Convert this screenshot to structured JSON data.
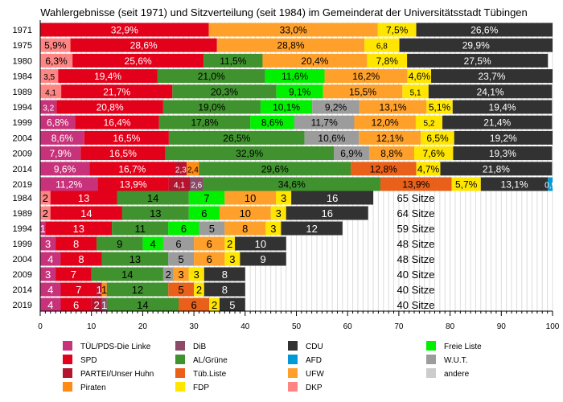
{
  "chart_data": {
    "type": "bar",
    "orientation": "horizontal",
    "stacked": true,
    "title": "Wahlergebnisse (seit 1971) und Sitzverteilung (seit 1984) im Gemeinderat der Universitätsstadt Tübingen",
    "xlim": [
      0,
      100
    ],
    "xticks": [
      "0",
      "10",
      "20",
      "30",
      "40",
      "50",
      "60",
      "70",
      "80",
      "90",
      "100"
    ],
    "grid": true,
    "legend_position": "bottom",
    "parties": [
      {
        "key": "tuel",
        "name": "TÜL/PDS-Die Linke",
        "color": "#c8327a",
        "text": "#fff"
      },
      {
        "key": "spd",
        "name": "SPD",
        "color": "#e2001a",
        "text": "#fff"
      },
      {
        "key": "partei",
        "name": "PARTEI/Unser Huhn",
        "color": "#b3142e",
        "text": "#fff"
      },
      {
        "key": "piraten",
        "name": "Piraten",
        "color": "#ff8a14",
        "text": "#000"
      },
      {
        "key": "dib",
        "name": "DiB",
        "color": "#8a4a68",
        "text": "#fff"
      },
      {
        "key": "al",
        "name": "AL/Grüne",
        "color": "#3f922d",
        "text": "#000"
      },
      {
        "key": "tueb",
        "name": "Tüb.Liste",
        "color": "#e8601a",
        "text": "#000"
      },
      {
        "key": "fdp",
        "name": "FDP",
        "color": "#ffe600",
        "text": "#000"
      },
      {
        "key": "cdu",
        "name": "CDU",
        "color": "#323232",
        "text": "#fff"
      },
      {
        "key": "afd",
        "name": "AFD",
        "color": "#0099d8",
        "text": "#fff"
      },
      {
        "key": "ufw",
        "name": "UFW",
        "color": "#ffa02a",
        "text": "#000"
      },
      {
        "key": "dkp",
        "name": "DKP",
        "color": "#ff8484",
        "text": "#000"
      },
      {
        "key": "fl",
        "name": "Freie Liste",
        "color": "#00f000",
        "text": "#000"
      },
      {
        "key": "wut",
        "name": "W.U.T.",
        "color": "#9c9c9c",
        "text": "#000"
      },
      {
        "key": "andere",
        "name": "andere",
        "color": "#cccccc",
        "text": "#000"
      }
    ],
    "votes": [
      {
        "year": "1971",
        "segments": [
          [
            "spd",
            32.9,
            "32,9%"
          ],
          [
            "ufw",
            33.0,
            "33,0%"
          ],
          [
            "fdp",
            7.5,
            "7,5%"
          ],
          [
            "cdu",
            26.6,
            "26,6%"
          ]
        ]
      },
      {
        "year": "1975",
        "segments": [
          [
            "dkp",
            5.9,
            "5,9%"
          ],
          [
            "spd",
            28.6,
            "28,6%"
          ],
          [
            "ufw",
            28.8,
            "28,8%"
          ],
          [
            "fdp",
            6.8,
            "6,8"
          ],
          [
            "cdu",
            29.9,
            "29,9%"
          ]
        ]
      },
      {
        "year": "1980",
        "segments": [
          [
            "dkp",
            6.3,
            "6,3%"
          ],
          [
            "spd",
            25.6,
            "25,6%"
          ],
          [
            "al",
            11.5,
            "11,5%"
          ],
          [
            "ufw",
            20.4,
            "20,4%"
          ],
          [
            "fdp",
            7.8,
            "7,8%"
          ],
          [
            "cdu",
            27.5,
            "27,5%"
          ]
        ]
      },
      {
        "year": "1984",
        "segments": [
          [
            "dkp",
            3.5,
            "3,5"
          ],
          [
            "spd",
            19.4,
            "19,4%"
          ],
          [
            "al",
            21.0,
            "21,0%"
          ],
          [
            "fl",
            11.6,
            "11,6%"
          ],
          [
            "ufw",
            16.2,
            "16,2%"
          ],
          [
            "fdp",
            4.6,
            "4,6%"
          ],
          [
            "cdu",
            23.7,
            "23,7%"
          ]
        ]
      },
      {
        "year": "1989",
        "segments": [
          [
            "dkp",
            4.1,
            "4,1"
          ],
          [
            "spd",
            21.7,
            "21,7%"
          ],
          [
            "al",
            20.3,
            "20,3%"
          ],
          [
            "fl",
            9.1,
            "9,1%"
          ],
          [
            "ufw",
            15.5,
            "15,5%"
          ],
          [
            "fdp",
            5.1,
            "5,1"
          ],
          [
            "cdu",
            24.1,
            "24,1%"
          ]
        ]
      },
      {
        "year": "1994",
        "segments": [
          [
            "tuel",
            3.2,
            "3,2"
          ],
          [
            "spd",
            20.8,
            "20,8%"
          ],
          [
            "al",
            19.0,
            "19,0%"
          ],
          [
            "fl",
            10.1,
            "10,1%"
          ],
          [
            "wut",
            9.2,
            "9,2%"
          ],
          [
            "ufw",
            13.1,
            "13,1%"
          ],
          [
            "fdp",
            5.1,
            "5,1%"
          ],
          [
            "cdu",
            19.4,
            "19,4%"
          ],
          [
            "andere",
            0.1,
            ""
          ]
        ]
      },
      {
        "year": "1999",
        "segments": [
          [
            "tuel",
            6.8,
            "6,8%"
          ],
          [
            "spd",
            16.4,
            "16,4%"
          ],
          [
            "al",
            17.8,
            "17,8%"
          ],
          [
            "fl",
            8.6,
            "8,6%"
          ],
          [
            "wut",
            11.7,
            "11,7%"
          ],
          [
            "ufw",
            12.0,
            "12,0%"
          ],
          [
            "fdp",
            5.2,
            "5,2"
          ],
          [
            "cdu",
            21.4,
            "21,4%"
          ]
        ]
      },
      {
        "year": "2004",
        "segments": [
          [
            "tuel",
            8.6,
            "8,6%"
          ],
          [
            "spd",
            16.5,
            "16,5%"
          ],
          [
            "al",
            26.5,
            "26,5%"
          ],
          [
            "wut",
            10.6,
            "10,6%"
          ],
          [
            "ufw",
            12.1,
            "12,1%"
          ],
          [
            "fdp",
            6.5,
            "6,5%"
          ],
          [
            "cdu",
            19.2,
            "19,2%"
          ]
        ]
      },
      {
        "year": "2009",
        "segments": [
          [
            "tuel",
            7.9,
            "7,9%"
          ],
          [
            "spd",
            16.5,
            "16,5%"
          ],
          [
            "al",
            32.9,
            "32,9%"
          ],
          [
            "wut",
            6.9,
            "6,9%"
          ],
          [
            "ufw",
            8.8,
            "8,8%"
          ],
          [
            "fdp",
            7.6,
            "7,6%"
          ],
          [
            "cdu",
            19.3,
            "19,3%"
          ]
        ]
      },
      {
        "year": "2014",
        "segments": [
          [
            "tuel",
            9.6,
            "9,6%"
          ],
          [
            "spd",
            16.7,
            "16,7%"
          ],
          [
            "partei",
            2.3,
            "2,3"
          ],
          [
            "piraten",
            2.4,
            "2,4"
          ],
          [
            "al",
            29.6,
            "29,6%"
          ],
          [
            "tueb",
            12.8,
            "12,8%"
          ],
          [
            "fdp",
            4.7,
            "4,7%"
          ],
          [
            "cdu",
            21.8,
            "21,8%"
          ]
        ]
      },
      {
        "year": "2019",
        "segments": [
          [
            "tuel",
            11.2,
            "11,2%"
          ],
          [
            "spd",
            13.9,
            "13,9%"
          ],
          [
            "partei",
            4.1,
            "4,1"
          ],
          [
            "dib",
            2.6,
            "2,6"
          ],
          [
            "al",
            34.6,
            "34,6%"
          ],
          [
            "tueb",
            13.9,
            "13,9%"
          ],
          [
            "fdp",
            5.7,
            "5,7%"
          ],
          [
            "cdu",
            13.1,
            "13,1%"
          ],
          [
            "afd",
            0.9,
            "0,9"
          ]
        ]
      }
    ],
    "seats": [
      {
        "year": "1984",
        "total": "65 Sitze",
        "segments": [
          [
            "dkp",
            2
          ],
          [
            "spd",
            13
          ],
          [
            "al",
            14
          ],
          [
            "fl",
            7
          ],
          [
            "ufw",
            10
          ],
          [
            "fdp",
            3
          ],
          [
            "cdu",
            16
          ]
        ]
      },
      {
        "year": "1989",
        "total": "64 Sitze",
        "segments": [
          [
            "dkp",
            2
          ],
          [
            "spd",
            14
          ],
          [
            "al",
            13
          ],
          [
            "fl",
            6
          ],
          [
            "ufw",
            10
          ],
          [
            "fdp",
            3
          ],
          [
            "cdu",
            16
          ]
        ]
      },
      {
        "year": "1994",
        "total": "59 Sitze",
        "segments": [
          [
            "tuel",
            1
          ],
          [
            "spd",
            13
          ],
          [
            "al",
            11
          ],
          [
            "fl",
            6
          ],
          [
            "wut",
            5
          ],
          [
            "ufw",
            8
          ],
          [
            "fdp",
            3
          ],
          [
            "cdu",
            12
          ]
        ]
      },
      {
        "year": "1999",
        "total": "48 Sitze",
        "segments": [
          [
            "tuel",
            3
          ],
          [
            "spd",
            8
          ],
          [
            "al",
            9
          ],
          [
            "fl",
            4
          ],
          [
            "wut",
            6
          ],
          [
            "ufw",
            6
          ],
          [
            "fdp",
            2
          ],
          [
            "cdu",
            10
          ]
        ]
      },
      {
        "year": "2004",
        "total": "48 Sitze",
        "segments": [
          [
            "tuel",
            4
          ],
          [
            "spd",
            8
          ],
          [
            "al",
            13
          ],
          [
            "wut",
            5
          ],
          [
            "ufw",
            6
          ],
          [
            "fdp",
            3
          ],
          [
            "cdu",
            9
          ]
        ]
      },
      {
        "year": "2009",
        "total": "40 Sitze",
        "segments": [
          [
            "tuel",
            3
          ],
          [
            "spd",
            7
          ],
          [
            "al",
            14
          ],
          [
            "wut",
            2
          ],
          [
            "ufw",
            3
          ],
          [
            "fdp",
            3
          ],
          [
            "cdu",
            8
          ]
        ]
      },
      {
        "year": "2014",
        "total": "40 Sitze",
        "segments": [
          [
            "tuel",
            4
          ],
          [
            "spd",
            7
          ],
          [
            "partei",
            1
          ],
          [
            "piraten",
            1
          ],
          [
            "al",
            12
          ],
          [
            "tueb",
            5
          ],
          [
            "fdp",
            2
          ],
          [
            "cdu",
            8
          ]
        ]
      },
      {
        "year": "2019",
        "total": "40 Sitze",
        "segments": [
          [
            "tuel",
            4
          ],
          [
            "spd",
            6
          ],
          [
            "partei",
            2
          ],
          [
            "dib",
            1
          ],
          [
            "al",
            14
          ],
          [
            "tueb",
            6
          ],
          [
            "fdp",
            2
          ],
          [
            "cdu",
            5
          ]
        ]
      }
    ],
    "legend_columns": [
      [
        "tuel",
        "spd",
        "partei",
        "piraten"
      ],
      [
        "dib",
        "al",
        "tueb",
        "fdp"
      ],
      [
        "cdu",
        "afd",
        "ufw",
        "dkp"
      ],
      [
        "fl",
        "wut",
        "andere"
      ]
    ]
  }
}
